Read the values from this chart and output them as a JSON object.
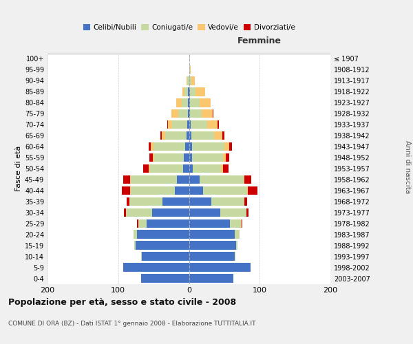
{
  "age_groups": [
    "0-4",
    "5-9",
    "10-14",
    "15-19",
    "20-24",
    "25-29",
    "30-34",
    "35-39",
    "40-44",
    "45-49",
    "50-54",
    "55-59",
    "60-64",
    "65-69",
    "70-74",
    "75-79",
    "80-84",
    "85-89",
    "90-94",
    "95-99",
    "100+"
  ],
  "birth_years": [
    "2003-2007",
    "1998-2002",
    "1993-1997",
    "1988-1992",
    "1983-1987",
    "1978-1982",
    "1973-1977",
    "1968-1972",
    "1963-1967",
    "1958-1962",
    "1953-1957",
    "1948-1952",
    "1943-1947",
    "1938-1942",
    "1933-1937",
    "1928-1932",
    "1923-1927",
    "1918-1922",
    "1913-1917",
    "1908-1912",
    "≤ 1907"
  ],
  "male": {
    "celibi": [
      68,
      93,
      67,
      75,
      73,
      60,
      52,
      37,
      20,
      17,
      8,
      7,
      5,
      3,
      2,
      1,
      1,
      1,
      0,
      0,
      0
    ],
    "coniugati": [
      0,
      0,
      1,
      2,
      5,
      12,
      37,
      47,
      62,
      65,
      47,
      42,
      45,
      31,
      22,
      14,
      9,
      5,
      2,
      0,
      0
    ],
    "vedovi": [
      0,
      0,
      0,
      0,
      0,
      0,
      0,
      0,
      1,
      1,
      2,
      2,
      4,
      4,
      6,
      10,
      8,
      3,
      1,
      0,
      0
    ],
    "divorziati": [
      0,
      0,
      0,
      0,
      0,
      1,
      3,
      4,
      12,
      10,
      8,
      5,
      3,
      2,
      1,
      0,
      0,
      0,
      0,
      0,
      0
    ]
  },
  "female": {
    "nubili": [
      63,
      87,
      65,
      67,
      65,
      58,
      44,
      32,
      20,
      15,
      5,
      4,
      4,
      3,
      2,
      1,
      1,
      1,
      0,
      0,
      0
    ],
    "coniugate": [
      0,
      0,
      1,
      2,
      7,
      16,
      37,
      46,
      62,
      62,
      40,
      44,
      46,
      33,
      24,
      17,
      14,
      8,
      3,
      1,
      0
    ],
    "vedove": [
      0,
      0,
      0,
      0,
      0,
      0,
      0,
      0,
      1,
      1,
      3,
      4,
      7,
      11,
      14,
      16,
      16,
      14,
      5,
      1,
      0
    ],
    "divorziate": [
      0,
      0,
      0,
      0,
      0,
      1,
      3,
      4,
      14,
      10,
      8,
      5,
      4,
      3,
      2,
      1,
      0,
      0,
      0,
      0,
      0
    ]
  },
  "colors": {
    "celibi_nubili": "#4472c4",
    "coniugati_e": "#c5d9a0",
    "vedovi_e": "#fac76e",
    "divorziati_e": "#cc0000"
  },
  "xlim": 200,
  "title": "Popolazione per età, sesso e stato civile - 2008",
  "subtitle": "COMUNE DI ORA (BZ) - Dati ISTAT 1° gennaio 2008 - Elaborazione TUTTITALIA.IT",
  "ylabel_left": "Fasce di età",
  "ylabel_right": "Anni di nascita",
  "xlabel_right": "Femmine",
  "bg_color": "#f0f0f0",
  "plot_bg_color": "#ffffff"
}
